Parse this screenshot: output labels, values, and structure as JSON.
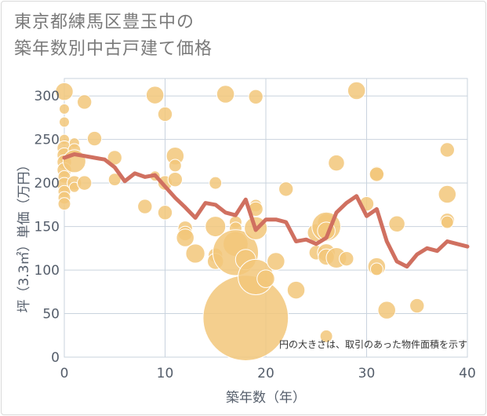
{
  "title_lines": [
    "東京都練馬区豊玉中の",
    "築年数別中古戸建て価格"
  ],
  "colors": {
    "bubble_fill": "#f2c77a",
    "bubble_stroke": "#ffffff",
    "line": "#d07060",
    "grid": "#c9d3de",
    "plot_bg": "#ffffff",
    "axis_text": "#555e6b"
  },
  "chart_data": {
    "type": "scatter",
    "title": "東京都練馬区豊玉中の築年数別中古戸建て価格",
    "xlabel": "築年数（年）",
    "ylabel": "坪（3.3㎡）単価（万円）",
    "xlim": [
      0,
      40
    ],
    "ylim": [
      0,
      320
    ],
    "xticks": [
      0,
      10,
      20,
      30,
      40
    ],
    "yticks": [
      0,
      50,
      100,
      150,
      200,
      250,
      300
    ],
    "grid": true,
    "annotation": "円の大きさは、取引のあった物件面積を示す",
    "bubbles": [
      {
        "x": 0,
        "y": 305,
        "s": 3
      },
      {
        "x": 0,
        "y": 285,
        "s": 1
      },
      {
        "x": 0,
        "y": 270,
        "s": 1
      },
      {
        "x": 0,
        "y": 250,
        "s": 1
      },
      {
        "x": 0,
        "y": 240,
        "s": 2
      },
      {
        "x": 0,
        "y": 232,
        "s": 2
      },
      {
        "x": 0,
        "y": 224,
        "s": 2
      },
      {
        "x": 0,
        "y": 215,
        "s": 2
      },
      {
        "x": 0,
        "y": 207,
        "s": 1.5
      },
      {
        "x": 0,
        "y": 198,
        "s": 2
      },
      {
        "x": 0,
        "y": 190,
        "s": 1.5
      },
      {
        "x": 0,
        "y": 183,
        "s": 1.5
      },
      {
        "x": 0,
        "y": 176,
        "s": 1.5
      },
      {
        "x": 1,
        "y": 246,
        "s": 1
      },
      {
        "x": 1,
        "y": 238,
        "s": 1.5
      },
      {
        "x": 1,
        "y": 225,
        "s": 5
      },
      {
        "x": 1,
        "y": 200,
        "s": 2
      },
      {
        "x": 1,
        "y": 195,
        "s": 1
      },
      {
        "x": 2,
        "y": 293,
        "s": 2
      },
      {
        "x": 2,
        "y": 200,
        "s": 2
      },
      {
        "x": 3,
        "y": 251,
        "s": 2
      },
      {
        "x": 5,
        "y": 229,
        "s": 2
      },
      {
        "x": 5,
        "y": 204,
        "s": 1.5
      },
      {
        "x": 8,
        "y": 173,
        "s": 2
      },
      {
        "x": 9,
        "y": 301,
        "s": 3
      },
      {
        "x": 9,
        "y": 208,
        "s": 1
      },
      {
        "x": 10,
        "y": 279,
        "s": 2
      },
      {
        "x": 10,
        "y": 200,
        "s": 2
      },
      {
        "x": 10,
        "y": 166,
        "s": 2
      },
      {
        "x": 11,
        "y": 231,
        "s": 3
      },
      {
        "x": 11,
        "y": 220,
        "s": 1.5
      },
      {
        "x": 11,
        "y": 204,
        "s": 2
      },
      {
        "x": 12,
        "y": 148,
        "s": 2
      },
      {
        "x": 12,
        "y": 142,
        "s": 2
      },
      {
        "x": 12,
        "y": 137,
        "s": 3
      },
      {
        "x": 13,
        "y": 119,
        "s": 3.5
      },
      {
        "x": 15,
        "y": 200,
        "s": 1.5
      },
      {
        "x": 15,
        "y": 150,
        "s": 4
      },
      {
        "x": 15,
        "y": 117,
        "s": 2
      },
      {
        "x": 15,
        "y": 110,
        "s": 2.5
      },
      {
        "x": 16,
        "y": 302,
        "s": 3
      },
      {
        "x": 17,
        "y": 155,
        "s": 1.5
      },
      {
        "x": 17,
        "y": 148,
        "s": 1.5
      },
      {
        "x": 17,
        "y": 130,
        "s": 6
      },
      {
        "x": 17,
        "y": 120,
        "s": 20
      },
      {
        "x": 18,
        "y": 112,
        "s": 4
      },
      {
        "x": 18,
        "y": 45,
        "s": 70
      },
      {
        "x": 19,
        "y": 299,
        "s": 2
      },
      {
        "x": 19,
        "y": 174,
        "s": 1.5
      },
      {
        "x": 19,
        "y": 170,
        "s": 2
      },
      {
        "x": 19,
        "y": 148,
        "s": 5
      },
      {
        "x": 19,
        "y": 92,
        "s": 12
      },
      {
        "x": 20,
        "y": 90,
        "s": 3
      },
      {
        "x": 21,
        "y": 110,
        "s": 3
      },
      {
        "x": 22,
        "y": 193,
        "s": 2
      },
      {
        "x": 23,
        "y": 77,
        "s": 3
      },
      {
        "x": 25,
        "y": 143,
        "s": 3
      },
      {
        "x": 25,
        "y": 120,
        "s": 2
      },
      {
        "x": 26,
        "y": 155,
        "s": 3
      },
      {
        "x": 26,
        "y": 150,
        "s": 8
      },
      {
        "x": 26,
        "y": 145,
        "s": 3
      },
      {
        "x": 26,
        "y": 120,
        "s": 3
      },
      {
        "x": 26,
        "y": 115,
        "s": 2.5
      },
      {
        "x": 26,
        "y": 24,
        "s": 1.5
      },
      {
        "x": 27,
        "y": 223,
        "s": 2.5
      },
      {
        "x": 27,
        "y": 114,
        "s": 4
      },
      {
        "x": 28,
        "y": 113,
        "s": 2
      },
      {
        "x": 29,
        "y": 306,
        "s": 3
      },
      {
        "x": 30,
        "y": 176,
        "s": 2
      },
      {
        "x": 31,
        "y": 211,
        "s": 2
      },
      {
        "x": 31,
        "y": 210,
        "s": 2
      },
      {
        "x": 31,
        "y": 104,
        "s": 3
      },
      {
        "x": 31,
        "y": 101,
        "s": 1.5
      },
      {
        "x": 32,
        "y": 54,
        "s": 3
      },
      {
        "x": 33,
        "y": 153,
        "s": 2.5
      },
      {
        "x": 35,
        "y": 59,
        "s": 2
      },
      {
        "x": 38,
        "y": 238,
        "s": 2
      },
      {
        "x": 38,
        "y": 187,
        "s": 3
      },
      {
        "x": 38,
        "y": 157,
        "s": 2
      },
      {
        "x": 38,
        "y": 155,
        "s": 1.5
      }
    ],
    "series": [
      {
        "type": "line",
        "x": [
          0,
          1,
          2,
          3,
          4,
          5,
          6,
          7,
          8,
          9,
          10,
          11,
          12,
          13,
          14,
          15,
          16,
          17,
          18,
          19,
          20,
          21,
          22,
          23,
          24,
          25,
          26,
          27,
          28,
          29,
          30,
          31,
          32,
          33,
          34,
          35,
          36,
          37,
          38,
          39,
          40
        ],
        "y": [
          229,
          233,
          231,
          229,
          227,
          218,
          202,
          211,
          207,
          209,
          196,
          183,
          172,
          160,
          177,
          175,
          166,
          163,
          181,
          146,
          158,
          158,
          155,
          133,
          135,
          130,
          137,
          166,
          177,
          185,
          162,
          170,
          133,
          110,
          104,
          118,
          125,
          122,
          133,
          130,
          127
        ]
      }
    ]
  }
}
